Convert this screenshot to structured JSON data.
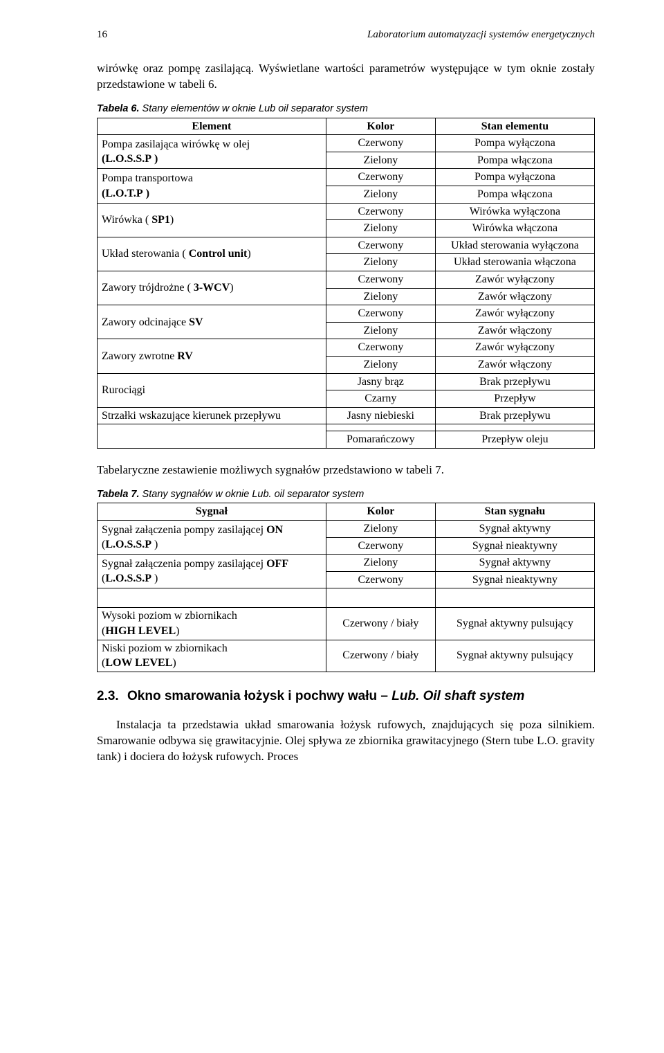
{
  "page_number": "16",
  "running_header": "Laboratorium automatyzacji systemów energetycznych",
  "intro_para": "wirówkę oraz pompę zasilającą. Wyświetlane wartości parametrów występujące w tym oknie zostały przedstawione w tabeli 6.",
  "table6": {
    "caption_bold": "Tabela 6.",
    "caption_rest": " Stany elementów w oknie Lub oil separator system",
    "headers": [
      "Element",
      "Kolor",
      "Stan elementu"
    ],
    "groups": [
      {
        "label_line1": "Pompa zasilająca wirówkę w olej",
        "label_line2": "(L.O.S.S.P )",
        "rows": [
          [
            "Czerwony",
            "Pompa wyłączona"
          ],
          [
            "Zielony",
            "Pompa włączona"
          ]
        ]
      },
      {
        "label_line1": "Pompa transportowa",
        "label_line2": "(L.O.T.P )",
        "rows": [
          [
            "Czerwony",
            "Pompa wyłączona"
          ],
          [
            "Zielony",
            "Pompa włączona"
          ]
        ]
      },
      {
        "label_line1": "Wirówka ( SP1)",
        "label_line2": "",
        "rows": [
          [
            "Czerwony",
            "Wirówka wyłączona"
          ],
          [
            "Zielony",
            "Wirówka włączona"
          ]
        ]
      },
      {
        "label_line1": "Układ sterowania ( Control unit)",
        "label_line2": "",
        "rows": [
          [
            "Czerwony",
            "Układ sterowania wyłączona"
          ],
          [
            "Zielony",
            "Układ sterowania włączona"
          ]
        ]
      },
      {
        "label_line1": "Zawory trójdrożne ( 3-WCV)",
        "label_line2": "",
        "rows": [
          [
            "Czerwony",
            "Zawór wyłączony"
          ],
          [
            "Zielony",
            "Zawór włączony"
          ]
        ]
      },
      {
        "label_line1": "Zawory odcinające SV",
        "label_line2": "",
        "rows": [
          [
            "Czerwony",
            "Zawór wyłączony"
          ],
          [
            "Zielony",
            "Zawór włączony"
          ]
        ]
      },
      {
        "label_line1": "Zawory zwrotne RV",
        "label_line2": "",
        "rows": [
          [
            "Czerwony",
            "Zawór wyłączony"
          ],
          [
            "Zielony",
            "Zawór włączony"
          ]
        ]
      },
      {
        "label_line1": "Rurociągi",
        "label_line2": "",
        "rows": [
          [
            "Jasny brąz",
            "Brak przepływu"
          ],
          [
            "Czarny",
            "Przepływ"
          ]
        ]
      },
      {
        "label_line1": "Strzałki wskazujące kierunek przepływu",
        "label_line2": "",
        "rows": [
          [
            "Jasny niebieski",
            "Brak przepływu"
          ]
        ]
      }
    ],
    "tail_row": [
      "Pomarańczowy",
      "Przepływ oleju"
    ]
  },
  "mid_para": "Tabelaryczne zestawienie możliwych sygnałów przedstawiono w tabeli 7.",
  "table7": {
    "caption_bold": "Tabela 7.",
    "caption_rest": " Stany sygnałów w oknie Lub. oil separator system",
    "headers": [
      "Sygnał",
      "Kolor",
      "Stan sygnału"
    ],
    "groups": [
      {
        "label_line1": "Sygnał załączenia pompy zasilającej ON",
        "label_line2": "(L.O.S.S.P )",
        "rows": [
          [
            "Zielony",
            "Sygnał aktywny"
          ],
          [
            "Czerwony",
            "Sygnał nieaktywny"
          ]
        ]
      },
      {
        "label_line1": "Sygnał załączenia pompy zasilającej OFF",
        "label_line2": "(L.O.S.S.P )",
        "rows": [
          [
            "Zielony",
            "Sygnał aktywny"
          ],
          [
            "Czerwony",
            "Sygnał nieaktywny"
          ]
        ]
      }
    ],
    "bottom_groups": [
      {
        "label_line1": "Wysoki poziom w zbiornikach",
        "label_line2": "(HIGH LEVEL)",
        "row": [
          "Czerwony / biały",
          "Sygnał aktywny pulsujący"
        ]
      },
      {
        "label_line1": "Niski poziom w zbiornikach",
        "label_line2": "(LOW LEVEL)",
        "row": [
          "Czerwony / biały",
          "Sygnał aktywny pulsujący"
        ]
      }
    ]
  },
  "section": {
    "num": "2.3.",
    "title_plain": "Okno smarowania łożysk i pochwy wału – ",
    "title_italic": "Lub. Oil shaft system"
  },
  "closing_para": "Instalacja ta przedstawia układ smarowania łożysk rufowych, znajdujących się poza silnikiem. Smarowanie odbywa się grawitacyjnie. Olej spływa ze zbiornika grawitacyjnego (Stern tube L.O. gravity tank) i dociera do łożysk rufowych. Proces",
  "colors": {
    "text": "#000000",
    "background": "#ffffff",
    "border": "#000000"
  },
  "typography": {
    "body_family": "Times New Roman",
    "body_size_pt": 12,
    "caption_family": "Arial",
    "caption_size_pt": 10,
    "heading_family": "Arial",
    "heading_size_pt": 14
  },
  "table_layout": {
    "col_widths_pct": [
      46,
      22,
      32
    ]
  }
}
